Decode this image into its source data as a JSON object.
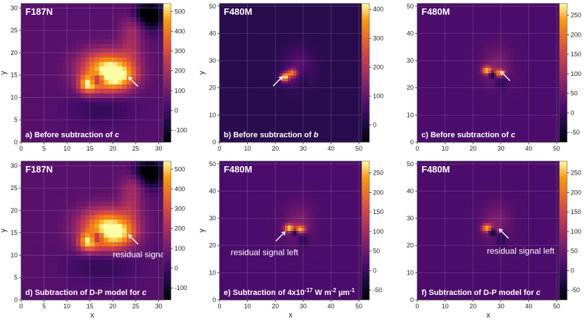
{
  "chart_data": [
    {
      "type": "heatmap",
      "filter": "F187N",
      "caption_main": "a) Before subtraction of ",
      "caption_italic": "c",
      "xlim": [
        0,
        31
      ],
      "ylim": [
        0,
        31
      ],
      "xticks": [
        "0",
        "5",
        "10",
        "15",
        "20",
        "25",
        "30"
      ],
      "yticks": [
        "0",
        "5",
        "10",
        "15",
        "20",
        "25",
        "30"
      ],
      "xlabel": "x",
      "ylabel": "y",
      "show_xlabel": false,
      "show_ylabel": true,
      "cbar_ticks": [
        "-100",
        "0",
        "100",
        "200",
        "300",
        "400",
        "500"
      ],
      "cbar_range": [
        -160,
        540
      ],
      "pixelated": true,
      "show_arrow": true,
      "arrow_dir": "nw",
      "arrow_target": [
        23.5,
        14.5
      ],
      "annotation": "",
      "blobs": [
        {
          "x": 18.5,
          "y": 16.5,
          "sx": 4.0,
          "sy": 2.8,
          "a": 470
        },
        {
          "x": 14.5,
          "y": 13.0,
          "sx": 1.4,
          "sy": 1.4,
          "a": 330
        },
        {
          "x": 21.5,
          "y": 14.5,
          "sx": 2.5,
          "sy": 2.0,
          "a": 260
        },
        {
          "x": 17.5,
          "y": 12.0,
          "sx": 3.5,
          "sy": 1.5,
          "a": 140
        },
        {
          "x": 24.0,
          "y": 23.5,
          "sx": 1.8,
          "sy": 5.0,
          "a": 140
        },
        {
          "x": 17.5,
          "y": 8.0,
          "sx": 5.0,
          "sy": 3.0,
          "a": -70
        },
        {
          "x": 16.5,
          "y": 14.0,
          "sx": 0.8,
          "sy": 0.8,
          "a": -260
        },
        {
          "x": 27.0,
          "y": 29.0,
          "sx": 2.5,
          "sy": 1.5,
          "a": -200
        },
        {
          "x": 28.5,
          "y": 27.5,
          "sx": 1.5,
          "sy": 2.0,
          "a": -160
        }
      ],
      "background": 40
    },
    {
      "type": "heatmap",
      "filter": "F480M",
      "caption_main": "b) Before subtraction of ",
      "caption_italic": "b",
      "xlim": [
        0,
        51
      ],
      "ylim": [
        0,
        51
      ],
      "xticks": [
        "0",
        "10",
        "20",
        "30",
        "40",
        "50"
      ],
      "yticks": [
        "0",
        "10",
        "20",
        "30",
        "40",
        "50"
      ],
      "xlabel": "x",
      "ylabel": "y",
      "show_xlabel": false,
      "show_ylabel": true,
      "cbar_ticks": [
        "0",
        "100",
        "200",
        "300",
        "400"
      ],
      "cbar_range": [
        -60,
        420
      ],
      "pixelated": false,
      "show_arrow": true,
      "arrow_dir": "sw",
      "arrow_target": [
        22.5,
        24
      ],
      "annotation": "",
      "blobs": [
        {
          "x": 23.5,
          "y": 24.0,
          "sx": 1.1,
          "sy": 1.1,
          "a": 380
        },
        {
          "x": 26.0,
          "y": 25.5,
          "sx": 1.2,
          "sy": 1.0,
          "a": 260
        },
        {
          "x": 28.5,
          "y": 27.0,
          "sx": 3.5,
          "sy": 5.0,
          "a": 70
        },
        {
          "x": 30.0,
          "y": 23.5,
          "sx": 1.5,
          "sy": 3.0,
          "a": -45
        }
      ],
      "background": 20
    },
    {
      "type": "heatmap",
      "filter": "F480M",
      "caption_main": "c) Before subtraction of ",
      "caption_italic": "c",
      "xlim": [
        0,
        51
      ],
      "ylim": [
        0,
        51
      ],
      "xticks": [
        "0",
        "10",
        "20",
        "30",
        "40",
        "50"
      ],
      "yticks": [
        "0",
        "10",
        "20",
        "30",
        "40",
        "50"
      ],
      "xlabel": "x",
      "ylabel": "y",
      "show_xlabel": false,
      "show_ylabel": false,
      "cbar_ticks": [
        "-50",
        "0",
        "50",
        "100",
        "150",
        "200",
        "250"
      ],
      "cbar_range": [
        -75,
        280
      ],
      "pixelated": false,
      "show_arrow": true,
      "arrow_dir": "nw",
      "arrow_target": [
        30,
        26
      ],
      "annotation": "",
      "blobs": [
        {
          "x": 25.0,
          "y": 26.5,
          "sx": 1.2,
          "sy": 1.0,
          "a": 230
        },
        {
          "x": 29.5,
          "y": 25.5,
          "sx": 1.4,
          "sy": 1.0,
          "a": 210
        },
        {
          "x": 27.0,
          "y": 25.0,
          "sx": 0.8,
          "sy": 0.8,
          "a": -180
        },
        {
          "x": 28.5,
          "y": 28.0,
          "sx": 3.5,
          "sy": 5.0,
          "a": 55
        },
        {
          "x": 30.0,
          "y": 23.0,
          "sx": 1.5,
          "sy": 2.5,
          "a": -60
        }
      ],
      "background": 15
    },
    {
      "type": "heatmap",
      "filter": "F187N",
      "caption_main": "d) Subtraction of D-P model for ",
      "caption_italic": "c",
      "xlim": [
        0,
        31
      ],
      "ylim": [
        0,
        31
      ],
      "xticks": [
        "0",
        "5",
        "10",
        "15",
        "20",
        "25",
        "30"
      ],
      "yticks": [
        "0",
        "5",
        "10",
        "15",
        "20",
        "25",
        "30"
      ],
      "xlabel": "x",
      "ylabel": "y",
      "show_xlabel": true,
      "show_ylabel": true,
      "cbar_ticks": [
        "-100",
        "0",
        "100",
        "200",
        "300",
        "400",
        "500"
      ],
      "cbar_range": [
        -160,
        540
      ],
      "pixelated": true,
      "show_arrow": true,
      "arrow_dir": "nw",
      "arrow_target": [
        23.5,
        14.5
      ],
      "annotation": "residual signal left",
      "annotation_pos": [
        20.0,
        9.5
      ],
      "blobs": [
        {
          "x": 18.5,
          "y": 16.5,
          "sx": 4.0,
          "sy": 2.8,
          "a": 460
        },
        {
          "x": 14.5,
          "y": 13.0,
          "sx": 1.4,
          "sy": 1.4,
          "a": 320
        },
        {
          "x": 21.5,
          "y": 14.5,
          "sx": 2.5,
          "sy": 2.0,
          "a": 230
        },
        {
          "x": 17.5,
          "y": 12.0,
          "sx": 3.5,
          "sy": 1.5,
          "a": 130
        },
        {
          "x": 24.0,
          "y": 23.5,
          "sx": 1.8,
          "sy": 5.0,
          "a": 140
        },
        {
          "x": 17.5,
          "y": 8.0,
          "sx": 5.0,
          "sy": 3.0,
          "a": -70
        },
        {
          "x": 16.5,
          "y": 14.0,
          "sx": 0.8,
          "sy": 0.8,
          "a": -260
        },
        {
          "x": 27.0,
          "y": 29.0,
          "sx": 2.5,
          "sy": 1.5,
          "a": -200
        },
        {
          "x": 28.5,
          "y": 27.5,
          "sx": 1.5,
          "sy": 2.0,
          "a": -160
        }
      ],
      "background": 40
    },
    {
      "type": "heatmap",
      "filter": "F480M",
      "caption_main": "e) Subtraction of 4x10",
      "caption_sup1": "-17",
      "caption_mid": " W m",
      "caption_sup2": "-2",
      "caption_mid2": " µm",
      "caption_sup3": "-1",
      "xlim": [
        0,
        51
      ],
      "ylim": [
        0,
        51
      ],
      "xticks": [
        "0",
        "10",
        "20",
        "30",
        "40",
        "50"
      ],
      "yticks": [
        "0",
        "10",
        "20",
        "30",
        "40",
        "50"
      ],
      "xlabel": "x",
      "ylabel": "y",
      "show_xlabel": true,
      "show_ylabel": true,
      "cbar_ticks": [
        "-50",
        "0",
        "50",
        "100",
        "150",
        "200",
        "250"
      ],
      "cbar_range": [
        -75,
        280
      ],
      "pixelated": false,
      "show_arrow": true,
      "arrow_dir": "sw",
      "arrow_target": [
        23.5,
        25
      ],
      "annotation": "residual signal left",
      "annotation_pos": [
        4.0,
        16.5
      ],
      "blobs": [
        {
          "x": 25.0,
          "y": 26.5,
          "sx": 1.2,
          "sy": 1.0,
          "a": 240
        },
        {
          "x": 29.0,
          "y": 26.0,
          "sx": 1.3,
          "sy": 1.0,
          "a": 220
        },
        {
          "x": 27.0,
          "y": 25.0,
          "sx": 0.8,
          "sy": 0.8,
          "a": -150
        },
        {
          "x": 28.5,
          "y": 28.0,
          "sx": 3.5,
          "sy": 5.0,
          "a": 55
        },
        {
          "x": 30.0,
          "y": 23.0,
          "sx": 1.5,
          "sy": 2.5,
          "a": -60
        }
      ],
      "background": 15
    },
    {
      "type": "heatmap",
      "filter": "F480M",
      "caption_main": "f) Subtraction of D-P model for ",
      "caption_italic": "c",
      "xlim": [
        0,
        51
      ],
      "ylim": [
        0,
        51
      ],
      "xticks": [
        "0",
        "10",
        "20",
        "30",
        "40",
        "50"
      ],
      "yticks": [
        "0",
        "10",
        "20",
        "30",
        "40",
        "50"
      ],
      "xlabel": "x",
      "ylabel": "y",
      "show_xlabel": true,
      "show_ylabel": false,
      "cbar_ticks": [
        "-50",
        "0",
        "50",
        "100",
        "150",
        "200",
        "250"
      ],
      "cbar_range": [
        -75,
        280
      ],
      "pixelated": false,
      "show_arrow": true,
      "arrow_dir": "nw",
      "arrow_target": [
        29.5,
        26
      ],
      "annotation": "residual signal left",
      "annotation_pos": [
        25.0,
        17.0
      ],
      "blobs": [
        {
          "x": 25.0,
          "y": 26.5,
          "sx": 1.2,
          "sy": 1.0,
          "a": 220
        },
        {
          "x": 29.0,
          "y": 25.5,
          "sx": 0.8,
          "sy": 0.8,
          "a": 60
        },
        {
          "x": 27.0,
          "y": 25.0,
          "sx": 0.8,
          "sy": 0.8,
          "a": -170
        },
        {
          "x": 28.5,
          "y": 28.0,
          "sx": 3.5,
          "sy": 5.0,
          "a": 55
        },
        {
          "x": 30.0,
          "y": 23.0,
          "sx": 1.5,
          "sy": 2.5,
          "a": -60
        }
      ],
      "background": 15
    }
  ]
}
